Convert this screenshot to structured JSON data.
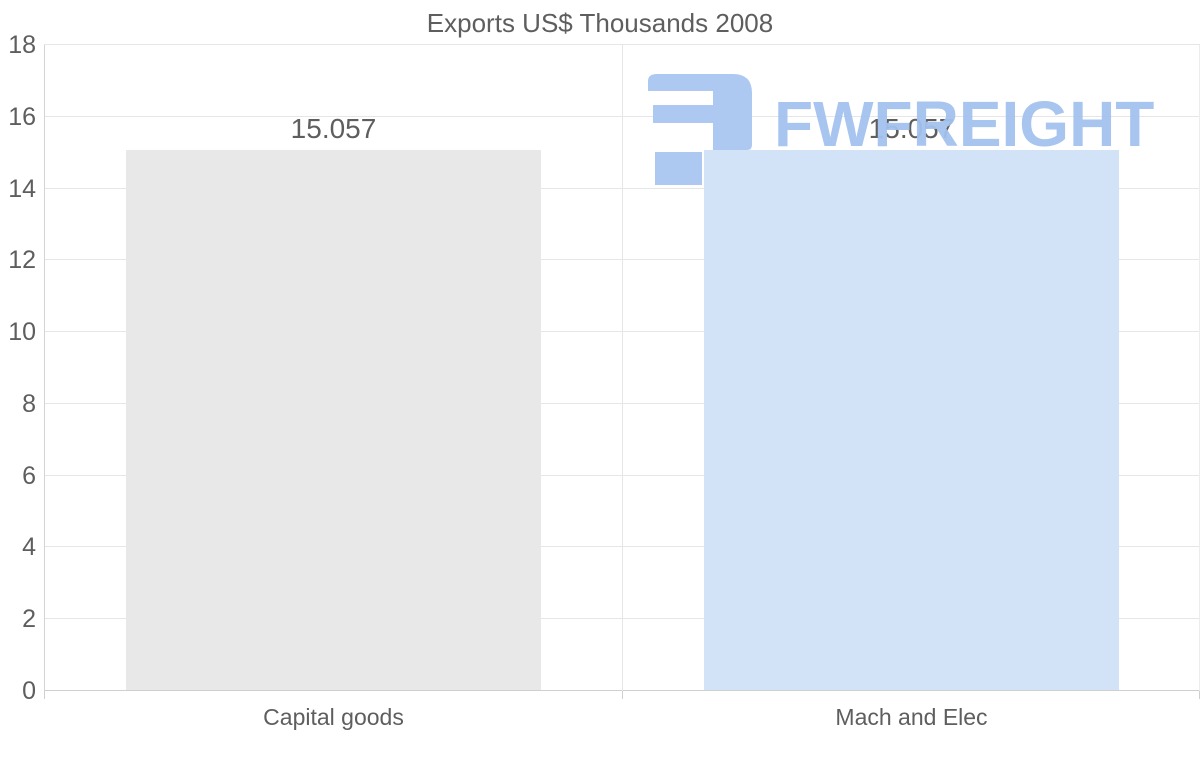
{
  "title": "Exports US$ Thousands 2008",
  "watermark": {
    "brand": "FWFREIGHT",
    "text_color": "#a3c2ee",
    "logo_color": "#a9c6f1"
  },
  "chart_data": {
    "type": "bar",
    "title": "Exports US$ Thousands 2008",
    "categories": [
      "Capital goods",
      "Mach and Elec"
    ],
    "values": [
      15.057,
      15.057
    ],
    "value_labels": [
      "15.057",
      "15.057"
    ],
    "series_colors": [
      "#e8e8e8",
      "#d2e3f8"
    ],
    "xlabel": "",
    "ylabel": "",
    "ylim": [
      0,
      18
    ],
    "yticks": [
      0,
      2,
      4,
      6,
      8,
      10,
      12,
      14,
      16,
      18
    ],
    "grid": true,
    "legend_position": "none",
    "text_color": "#5e5e5e",
    "grid_color": "#e6e6e6",
    "axis_color": "#cfcfcf"
  }
}
